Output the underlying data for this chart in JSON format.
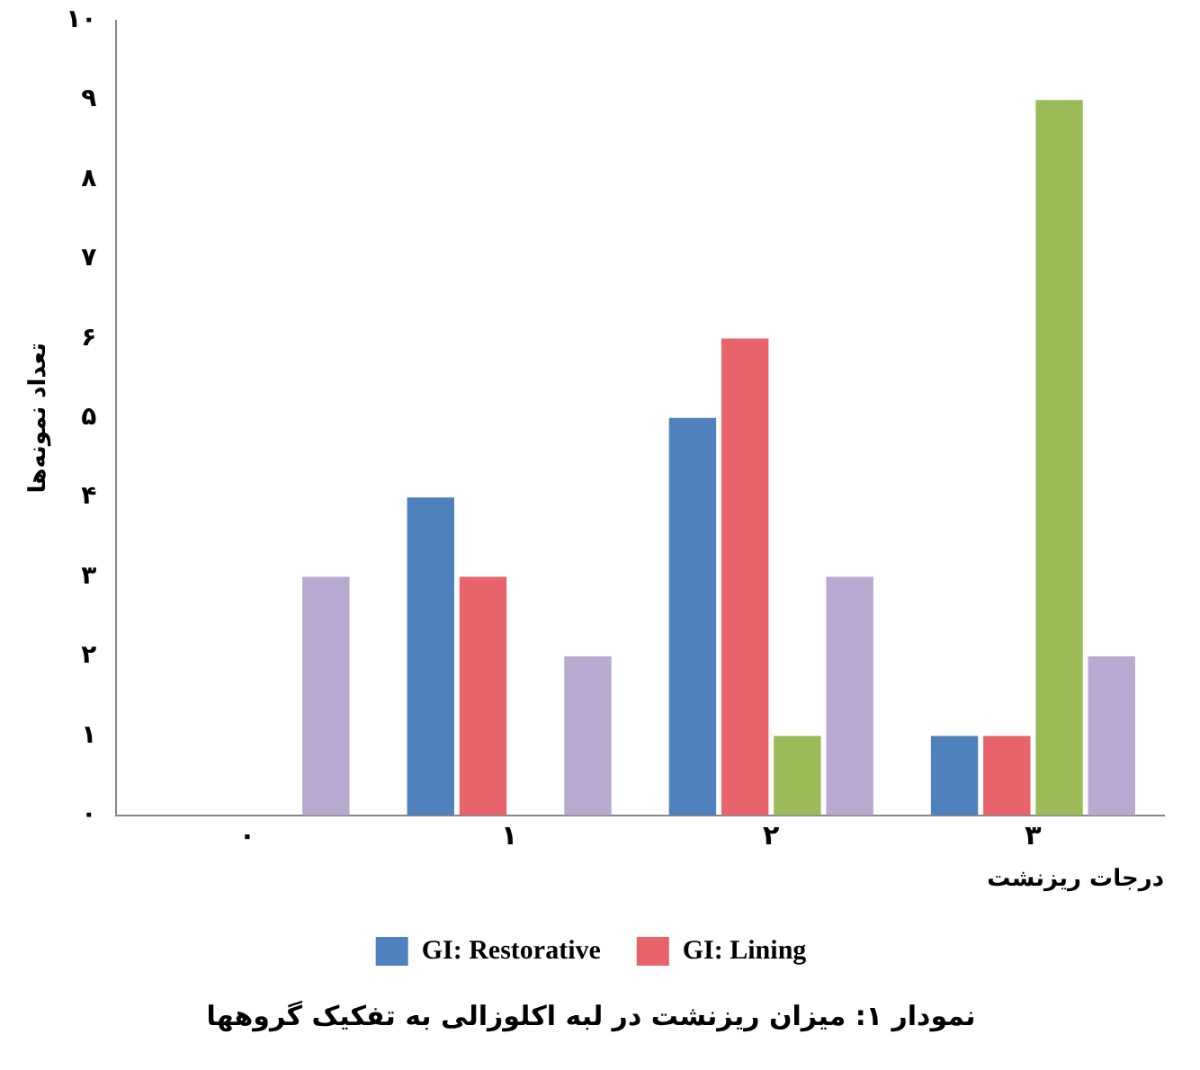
{
  "chart_data": {
    "type": "bar",
    "title": "نمودار ۱: میزان ریزنشت در لبه اکلوزالی به تفکیک گروهها",
    "xlabel": "درجات ریزنشت",
    "ylabel": "تعداد نمونه‌ها",
    "categories": [
      "۰",
      "۱",
      "۲",
      "۳"
    ],
    "series": [
      {
        "name": "GI: Restorative",
        "color": "#4f81bd",
        "values": [
          0,
          4,
          5,
          1
        ]
      },
      {
        "name": "GI: Lining",
        "color": "#e8636a",
        "values": [
          0,
          3,
          6,
          1
        ]
      },
      {
        "color": "#9bbb59",
        "values": [
          0,
          0,
          1,
          9
        ]
      },
      {
        "color": "#b8a9d0",
        "values": [
          3,
          2,
          3,
          2
        ]
      }
    ],
    "ylim": [
      0,
      10
    ],
    "yticks": [
      {
        "value": 0,
        "label": "۰"
      },
      {
        "value": 1,
        "label": "۱"
      },
      {
        "value": 2,
        "label": "۲"
      },
      {
        "value": 3,
        "label": "۳"
      },
      {
        "value": 4,
        "label": "۴"
      },
      {
        "value": 5,
        "label": "۵"
      },
      {
        "value": 6,
        "label": "۶"
      },
      {
        "value": 7,
        "label": "۷"
      },
      {
        "value": 8,
        "label": "۸"
      },
      {
        "value": 9,
        "label": "۹"
      },
      {
        "value": 10,
        "label": "۱۰"
      }
    ],
    "grid": false,
    "legend": "bottom"
  }
}
